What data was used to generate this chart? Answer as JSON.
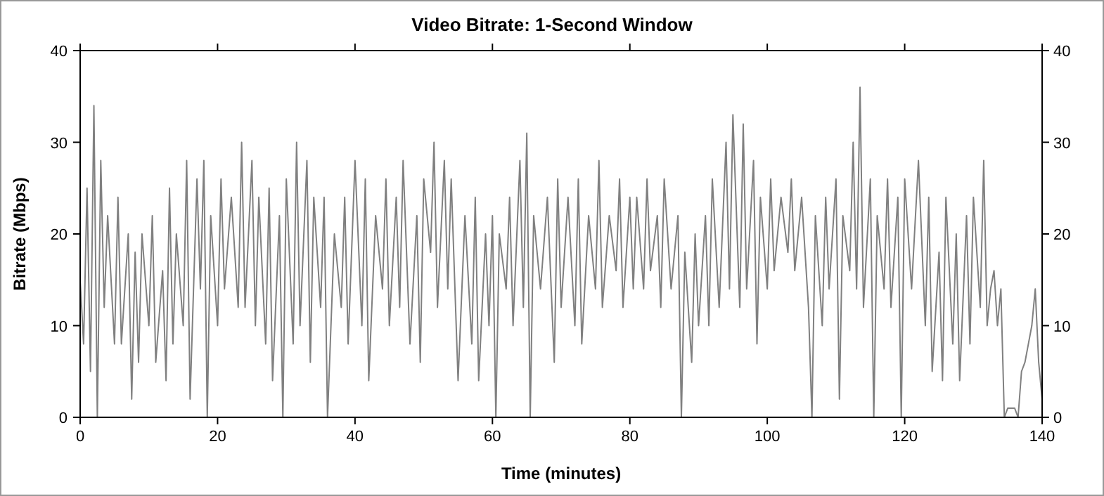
{
  "chart_data": {
    "type": "line",
    "title": "Video Bitrate: 1-Second Window",
    "xlabel": "Time (minutes)",
    "ylabel": "Bitrate (Mbps)",
    "x": [
      0,
      0.5,
      1,
      1.5,
      2,
      2.5,
      3,
      3.5,
      4,
      5,
      5.5,
      6,
      7,
      7.5,
      8,
      8.5,
      9,
      10,
      10.5,
      11,
      12,
      12.5,
      13,
      13.5,
      14,
      15,
      15.5,
      16,
      17,
      17.5,
      18,
      18.5,
      19,
      20,
      20.5,
      21,
      22,
      23,
      23.5,
      24,
      25,
      25.5,
      26,
      27,
      27.5,
      28,
      29,
      29.5,
      30,
      31,
      31.5,
      32,
      33,
      33.5,
      34,
      35,
      35.5,
      36,
      37,
      38,
      38.5,
      39,
      40,
      41,
      41.5,
      42,
      43,
      44,
      44.5,
      45,
      46,
      46.5,
      47,
      48,
      49,
      49.5,
      50,
      51,
      51.5,
      52,
      53,
      53.5,
      54,
      55,
      56,
      57,
      57.5,
      58,
      59,
      59.5,
      60,
      60.5,
      61,
      62,
      62.5,
      63,
      64,
      64.5,
      65,
      65.5,
      66,
      67,
      68,
      69,
      69.5,
      70,
      71,
      72,
      72.5,
      73,
      74,
      75,
      75.5,
      76,
      77,
      78,
      78.5,
      79,
      80,
      80.5,
      81,
      82,
      82.5,
      83,
      84,
      84.5,
      85,
      86,
      87,
      87.5,
      88,
      89,
      89.5,
      90,
      91,
      91.5,
      92,
      93,
      94,
      94.5,
      95,
      96,
      96.5,
      97,
      98,
      98.5,
      99,
      100,
      100.5,
      101,
      102,
      103,
      103.5,
      104,
      105,
      106,
      106.5,
      107,
      108,
      108.5,
      109,
      110,
      110.5,
      111,
      112,
      112.5,
      113,
      113.5,
      114,
      115,
      115.5,
      116,
      117,
      117.5,
      118,
      119,
      119.5,
      120,
      121,
      122,
      123,
      123.5,
      124,
      125,
      125.5,
      126,
      127,
      127.5,
      128,
      129,
      129.5,
      130,
      131,
      131.5,
      132,
      132.5,
      133,
      133.5,
      134,
      134.5,
      135,
      136,
      136.5,
      137,
      137.5,
      138,
      138.5,
      139,
      139.5,
      140
    ],
    "series": [
      {
        "color": "#808080",
        "values": [
          15,
          8,
          25,
          5,
          34,
          0,
          28,
          12,
          22,
          8,
          24,
          8,
          20,
          2,
          18,
          6,
          20,
          10,
          22,
          6,
          16,
          4,
          25,
          8,
          20,
          10,
          28,
          2,
          26,
          14,
          28,
          0,
          22,
          10,
          26,
          14,
          24,
          12,
          30,
          12,
          28,
          10,
          24,
          8,
          25,
          4,
          22,
          0,
          26,
          8,
          30,
          10,
          28,
          6,
          24,
          12,
          24,
          0,
          20,
          12,
          24,
          8,
          28,
          10,
          26,
          4,
          22,
          14,
          26,
          10,
          24,
          12,
          28,
          8,
          22,
          6,
          26,
          18,
          30,
          12,
          28,
          14,
          26,
          4,
          22,
          8,
          24,
          4,
          20,
          10,
          22,
          0,
          20,
          14,
          24,
          10,
          28,
          12,
          31,
          0,
          22,
          14,
          24,
          6,
          26,
          12,
          24,
          10,
          26,
          8,
          22,
          14,
          28,
          12,
          22,
          16,
          26,
          12,
          24,
          14,
          24,
          14,
          26,
          16,
          22,
          12,
          26,
          14,
          22,
          0,
          18,
          6,
          20,
          10,
          22,
          10,
          26,
          12,
          30,
          14,
          33,
          12,
          32,
          14,
          28,
          8,
          24,
          14,
          26,
          16,
          24,
          18,
          26,
          16,
          24,
          12,
          0,
          22,
          10,
          24,
          14,
          26,
          2,
          22,
          16,
          30,
          14,
          36,
          12,
          26,
          0,
          22,
          14,
          26,
          12,
          24,
          0,
          26,
          14,
          28,
          10,
          24,
          5,
          18,
          4,
          24,
          8,
          20,
          4,
          22,
          8,
          24,
          12,
          28,
          10,
          14,
          16,
          10,
          14,
          0,
          1,
          1,
          0,
          5,
          6,
          8,
          10,
          14,
          6,
          2
        ]
      }
    ],
    "xlim": [
      0,
      140
    ],
    "xticks": [
      0,
      20,
      40,
      60,
      80,
      100,
      120,
      140
    ],
    "ylim": [
      0,
      40
    ],
    "yticks": [
      0,
      10,
      20,
      30,
      40
    ],
    "y2lim": [
      0,
      40
    ],
    "y2ticks": [
      0,
      10,
      20,
      30,
      40
    ],
    "line_style": "solid",
    "marker": "none"
  }
}
